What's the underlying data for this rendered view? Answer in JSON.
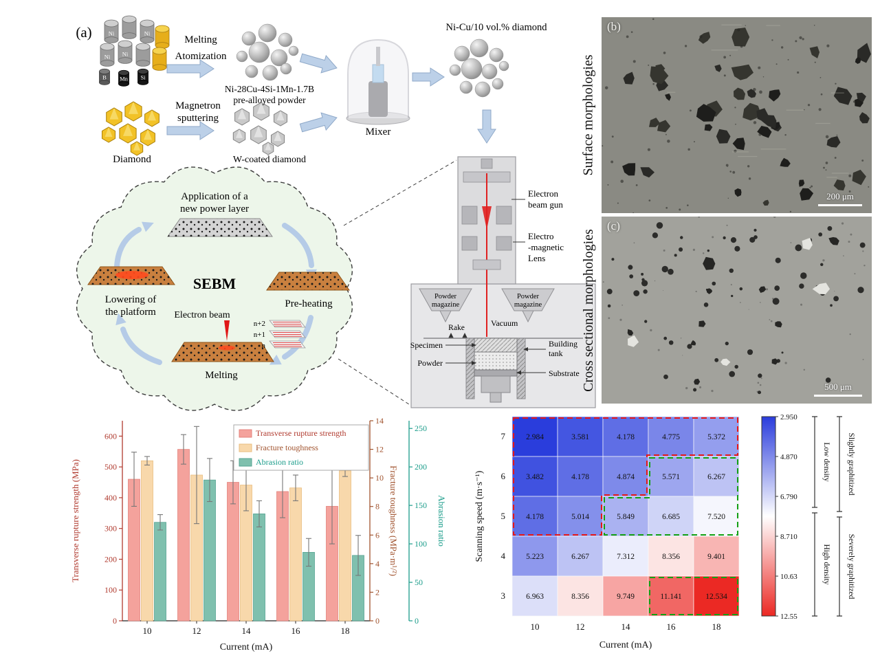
{
  "panel_a": {
    "label": "(a)",
    "melting": "Melting",
    "atomization": "Atomization",
    "prealloy_line1": "Ni-28Cu-4Si-1Mn-1.7B",
    "prealloy_line2": "pre-alloyed powder",
    "magnetron_line1": "Magnetron",
    "magnetron_line2": "sputtering",
    "diamond": "Diamond",
    "w_coated": "W-coated diamond",
    "mixer": "Mixer",
    "mixture": "Ni-Cu/10 vol.% diamond",
    "elements": {
      "ni": "Ni",
      "b": "B",
      "mn": "Mn",
      "si": "Si"
    },
    "cycle": {
      "top1": "Application of a",
      "top2": "new power layer",
      "right": "Pre-heating",
      "bottom": "Melting",
      "left1": "Lowering of",
      "left2": "the platform",
      "beam": "Electron beam",
      "sebm": "SEBM",
      "n2": "n+2",
      "n1": "n+1",
      "n0": "n"
    },
    "machine": {
      "gun1": "Electron",
      "gun2": "beam gun",
      "lens1": "Electro",
      "lens2": "-magnetic",
      "lens3": "Lens",
      "mag1a": "Powder",
      "mag1b": "magazine",
      "mag2a": "Powder",
      "mag2b": "magazine",
      "vacuum": "Vacuum",
      "rake": "Rake",
      "specimen": "Specimen",
      "tank1": "Building",
      "tank2": "tank",
      "powder": "Powder",
      "substrate": "Substrate"
    }
  },
  "sem": {
    "b": {
      "label": "(b)",
      "side": "Surface morphologies",
      "scale": "200 μm"
    },
    "c": {
      "label": "(c)",
      "side": "Cross sectional morphologies",
      "scale": "500 μm"
    }
  },
  "chart_data": [
    {
      "type": "bar",
      "xlabel": "Current (mA)",
      "categories": [
        "10",
        "12",
        "14",
        "16",
        "18"
      ],
      "series": [
        {
          "name": "Transverse rupture strength",
          "axis": "left",
          "color": "#f4a29c",
          "edge": "#e3837c",
          "values": [
            460,
            557,
            450,
            420,
            372
          ],
          "errors": [
            88,
            48,
            70,
            85,
            122
          ]
        },
        {
          "name": "Fracture toughness",
          "axis": "right1",
          "color": "#f8d8ab",
          "edge": "#e9bd7f",
          "values": [
            11.2,
            10.2,
            9.5,
            9.3,
            10.5
          ],
          "errors": [
            0.3,
            3.4,
            1.8,
            0.9,
            0.4
          ]
        },
        {
          "name": "Abrasion ratio",
          "axis": "right2",
          "color": "#7fc0ae",
          "edge": "#56a391",
          "values": [
            128,
            183,
            139,
            89,
            85
          ],
          "errors": [
            10,
            28,
            17,
            18,
            26
          ]
        }
      ],
      "axes": {
        "left": {
          "label": "Transverse rupture strength (MPa)",
          "color": "#b03a2e",
          "min": 0,
          "max": 650,
          "ticks": [
            0,
            100,
            200,
            300,
            400,
            500,
            600
          ]
        },
        "right1": {
          "label": "Fracture toughness (MPa·m¹/²)",
          "color": "#a0522d",
          "min": 0,
          "max": 14,
          "ticks": [
            0,
            2,
            4,
            6,
            8,
            10,
            12,
            14
          ]
        },
        "right2": {
          "label": "Abrasion ratio",
          "color": "#1a9c8a",
          "min": 0,
          "max": 260,
          "ticks": [
            0,
            50,
            100,
            150,
            200,
            250
          ]
        }
      },
      "legend_position": "top-right",
      "grid": false
    },
    {
      "type": "heatmap",
      "xlabel": "Current (mA)",
      "ylabel": "Scanning speed (m·s⁻¹)",
      "x": [
        "10",
        "12",
        "14",
        "16",
        "18"
      ],
      "y": [
        "7",
        "6",
        "5",
        "4",
        "3"
      ],
      "values": [
        [
          "2.984",
          "3.581",
          "4.178",
          "4.775",
          "5.372"
        ],
        [
          "3.482",
          "4.178",
          "4.874",
          "5.571",
          "6.267"
        ],
        [
          "4.178",
          "5.014",
          "5.849",
          "6.685",
          "7.520"
        ],
        [
          "5.223",
          "6.267",
          "7.312",
          "8.356",
          "9.401"
        ],
        [
          "6.963",
          "8.356",
          "9.749",
          "11.141",
          "12.534"
        ]
      ],
      "vmin": 2.95,
      "vmax": 12.55,
      "colorbar_ticks": [
        "2.950",
        "4.870",
        "6.790",
        "8.710",
        "10.63",
        "12.55"
      ],
      "annotations": {
        "inner_top": "Low density",
        "inner_bottom": "High density",
        "outer_top": "Slightly graphitized",
        "outer_bottom": "Severely graphitized"
      }
    }
  ]
}
